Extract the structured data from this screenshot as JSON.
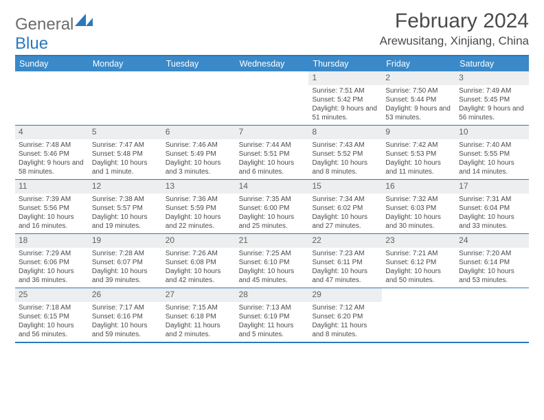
{
  "brand": {
    "part1": "General",
    "part2": "Blue"
  },
  "title": "February 2024",
  "location": "Arewusitang, Xinjiang, China",
  "colors": {
    "header_bg": "#3a89c9",
    "border": "#2a78bb",
    "daynum_bg": "#eceeef",
    "text": "#4a4a4a"
  },
  "weekdays": [
    "Sunday",
    "Monday",
    "Tuesday",
    "Wednesday",
    "Thursday",
    "Friday",
    "Saturday"
  ],
  "weeks": [
    [
      {
        "blank": true
      },
      {
        "blank": true
      },
      {
        "blank": true
      },
      {
        "blank": true
      },
      {
        "n": "1",
        "sr": "7:51 AM",
        "ss": "5:42 PM",
        "dl": "9 hours and 51 minutes."
      },
      {
        "n": "2",
        "sr": "7:50 AM",
        "ss": "5:44 PM",
        "dl": "9 hours and 53 minutes."
      },
      {
        "n": "3",
        "sr": "7:49 AM",
        "ss": "5:45 PM",
        "dl": "9 hours and 56 minutes."
      }
    ],
    [
      {
        "n": "4",
        "sr": "7:48 AM",
        "ss": "5:46 PM",
        "dl": "9 hours and 58 minutes."
      },
      {
        "n": "5",
        "sr": "7:47 AM",
        "ss": "5:48 PM",
        "dl": "10 hours and 1 minute."
      },
      {
        "n": "6",
        "sr": "7:46 AM",
        "ss": "5:49 PM",
        "dl": "10 hours and 3 minutes."
      },
      {
        "n": "7",
        "sr": "7:44 AM",
        "ss": "5:51 PM",
        "dl": "10 hours and 6 minutes."
      },
      {
        "n": "8",
        "sr": "7:43 AM",
        "ss": "5:52 PM",
        "dl": "10 hours and 8 minutes."
      },
      {
        "n": "9",
        "sr": "7:42 AM",
        "ss": "5:53 PM",
        "dl": "10 hours and 11 minutes."
      },
      {
        "n": "10",
        "sr": "7:40 AM",
        "ss": "5:55 PM",
        "dl": "10 hours and 14 minutes."
      }
    ],
    [
      {
        "n": "11",
        "sr": "7:39 AM",
        "ss": "5:56 PM",
        "dl": "10 hours and 16 minutes."
      },
      {
        "n": "12",
        "sr": "7:38 AM",
        "ss": "5:57 PM",
        "dl": "10 hours and 19 minutes."
      },
      {
        "n": "13",
        "sr": "7:36 AM",
        "ss": "5:59 PM",
        "dl": "10 hours and 22 minutes."
      },
      {
        "n": "14",
        "sr": "7:35 AM",
        "ss": "6:00 PM",
        "dl": "10 hours and 25 minutes."
      },
      {
        "n": "15",
        "sr": "7:34 AM",
        "ss": "6:02 PM",
        "dl": "10 hours and 27 minutes."
      },
      {
        "n": "16",
        "sr": "7:32 AM",
        "ss": "6:03 PM",
        "dl": "10 hours and 30 minutes."
      },
      {
        "n": "17",
        "sr": "7:31 AM",
        "ss": "6:04 PM",
        "dl": "10 hours and 33 minutes."
      }
    ],
    [
      {
        "n": "18",
        "sr": "7:29 AM",
        "ss": "6:06 PM",
        "dl": "10 hours and 36 minutes."
      },
      {
        "n": "19",
        "sr": "7:28 AM",
        "ss": "6:07 PM",
        "dl": "10 hours and 39 minutes."
      },
      {
        "n": "20",
        "sr": "7:26 AM",
        "ss": "6:08 PM",
        "dl": "10 hours and 42 minutes."
      },
      {
        "n": "21",
        "sr": "7:25 AM",
        "ss": "6:10 PM",
        "dl": "10 hours and 45 minutes."
      },
      {
        "n": "22",
        "sr": "7:23 AM",
        "ss": "6:11 PM",
        "dl": "10 hours and 47 minutes."
      },
      {
        "n": "23",
        "sr": "7:21 AM",
        "ss": "6:12 PM",
        "dl": "10 hours and 50 minutes."
      },
      {
        "n": "24",
        "sr": "7:20 AM",
        "ss": "6:14 PM",
        "dl": "10 hours and 53 minutes."
      }
    ],
    [
      {
        "n": "25",
        "sr": "7:18 AM",
        "ss": "6:15 PM",
        "dl": "10 hours and 56 minutes."
      },
      {
        "n": "26",
        "sr": "7:17 AM",
        "ss": "6:16 PM",
        "dl": "10 hours and 59 minutes."
      },
      {
        "n": "27",
        "sr": "7:15 AM",
        "ss": "6:18 PM",
        "dl": "11 hours and 2 minutes."
      },
      {
        "n": "28",
        "sr": "7:13 AM",
        "ss": "6:19 PM",
        "dl": "11 hours and 5 minutes."
      },
      {
        "n": "29",
        "sr": "7:12 AM",
        "ss": "6:20 PM",
        "dl": "11 hours and 8 minutes."
      },
      {
        "blank": true
      },
      {
        "blank": true
      }
    ]
  ],
  "labels": {
    "sunrise": "Sunrise: ",
    "sunset": "Sunset: ",
    "daylight": "Daylight: "
  }
}
